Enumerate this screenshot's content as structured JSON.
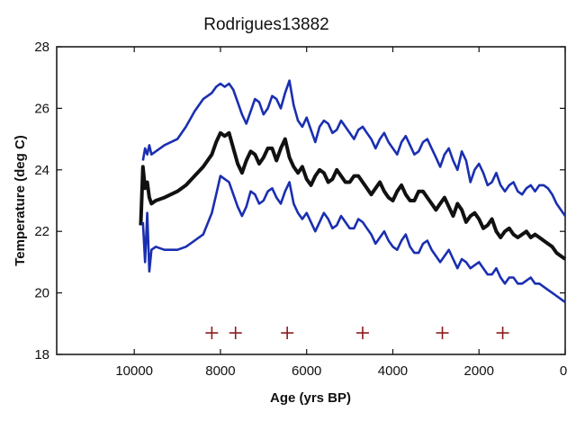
{
  "chart_data": {
    "type": "line",
    "title": "Rodrigues13882",
    "xlabel": "Age (yrs BP)",
    "ylabel": "Temperature (deg C)",
    "xlim": [
      11800,
      0
    ],
    "ylim": [
      18,
      28
    ],
    "x_reversed": true,
    "xticks": [
      10000,
      8000,
      6000,
      4000,
      2000,
      0
    ],
    "yticks": [
      18,
      20,
      22,
      24,
      26,
      28
    ],
    "grid": false,
    "legend": "none",
    "series": [
      {
        "color": "#1a2fb0",
        "x": [
          9800,
          9750,
          9700,
          9650,
          9600,
          9500,
          9300,
          9000,
          8800,
          8600,
          8400,
          8200,
          8100,
          8000,
          7900,
          7800,
          7700,
          7600,
          7500,
          7400,
          7300,
          7200,
          7100,
          7000,
          6900,
          6800,
          6700,
          6600,
          6500,
          6400,
          6300,
          6200,
          6100,
          6000,
          5900,
          5800,
          5700,
          5600,
          5500,
          5400,
          5300,
          5200,
          5100,
          5000,
          4900,
          4800,
          4700,
          4600,
          4500,
          4400,
          4300,
          4200,
          4100,
          4000,
          3900,
          3800,
          3700,
          3600,
          3500,
          3400,
          3300,
          3200,
          3100,
          3000,
          2900,
          2800,
          2700,
          2600,
          2500,
          2400,
          2300,
          2200,
          2100,
          2000,
          1900,
          1800,
          1700,
          1600,
          1500,
          1400,
          1300,
          1200,
          1100,
          1000,
          900,
          800,
          700,
          600,
          500,
          400,
          300,
          200,
          100,
          0
        ],
        "y": [
          24.3,
          24.7,
          24.5,
          24.8,
          24.5,
          24.6,
          24.8,
          25.0,
          25.4,
          25.9,
          26.3,
          26.5,
          26.7,
          26.8,
          26.7,
          26.8,
          26.6,
          26.2,
          25.8,
          25.5,
          25.9,
          26.3,
          26.2,
          25.8,
          26.0,
          26.4,
          26.3,
          26.0,
          26.5,
          26.9,
          26.1,
          25.6,
          25.4,
          25.7,
          25.3,
          24.9,
          25.4,
          25.6,
          25.5,
          25.2,
          25.3,
          25.6,
          25.4,
          25.2,
          25.0,
          25.3,
          25.4,
          25.2,
          25.0,
          24.7,
          25.0,
          25.2,
          24.9,
          24.7,
          24.5,
          24.9,
          25.1,
          24.8,
          24.5,
          24.6,
          24.9,
          25.0,
          24.7,
          24.4,
          24.1,
          24.5,
          24.7,
          24.3,
          24.0,
          24.6,
          24.3,
          23.6,
          24.0,
          24.2,
          23.9,
          23.5,
          23.6,
          23.9,
          23.5,
          23.3,
          23.5,
          23.6,
          23.3,
          23.2,
          23.4,
          23.5,
          23.3,
          23.5,
          23.5,
          23.4,
          23.2,
          22.9,
          22.7,
          22.5
        ]
      },
      {
        "color": "#111111",
        "x": [
          9850,
          9800,
          9750,
          9700,
          9650,
          9600,
          9500,
          9300,
          9000,
          8800,
          8600,
          8400,
          8200,
          8100,
          8000,
          7900,
          7800,
          7700,
          7600,
          7500,
          7400,
          7300,
          7200,
          7100,
          7000,
          6900,
          6800,
          6700,
          6600,
          6500,
          6400,
          6300,
          6200,
          6100,
          6000,
          5900,
          5800,
          5700,
          5600,
          5500,
          5400,
          5300,
          5200,
          5100,
          5000,
          4900,
          4800,
          4700,
          4600,
          4500,
          4400,
          4300,
          4200,
          4100,
          4000,
          3900,
          3800,
          3700,
          3600,
          3500,
          3400,
          3300,
          3200,
          3100,
          3000,
          2900,
          2800,
          2700,
          2600,
          2500,
          2400,
          2300,
          2200,
          2100,
          2000,
          1900,
          1800,
          1700,
          1600,
          1500,
          1400,
          1300,
          1200,
          1100,
          1000,
          900,
          800,
          700,
          600,
          500,
          400,
          300,
          200,
          100,
          0
        ],
        "y": [
          22.2,
          24.1,
          23.4,
          23.6,
          23.1,
          22.9,
          23.0,
          23.1,
          23.3,
          23.5,
          23.8,
          24.1,
          24.5,
          24.9,
          25.2,
          25.1,
          25.2,
          24.7,
          24.2,
          23.9,
          24.3,
          24.6,
          24.5,
          24.2,
          24.4,
          24.7,
          24.7,
          24.3,
          24.7,
          25.0,
          24.4,
          24.1,
          23.9,
          24.1,
          23.7,
          23.5,
          23.8,
          24.0,
          23.9,
          23.6,
          23.7,
          24.0,
          23.8,
          23.6,
          23.6,
          23.8,
          23.8,
          23.6,
          23.4,
          23.2,
          23.4,
          23.6,
          23.3,
          23.1,
          23.0,
          23.3,
          23.5,
          23.2,
          23.0,
          23.0,
          23.3,
          23.3,
          23.1,
          22.9,
          22.7,
          22.9,
          23.1,
          22.8,
          22.5,
          22.9,
          22.7,
          22.3,
          22.5,
          22.6,
          22.4,
          22.1,
          22.2,
          22.4,
          22.0,
          21.8,
          22.0,
          22.1,
          21.9,
          21.8,
          21.9,
          22.0,
          21.8,
          21.9,
          21.8,
          21.7,
          21.6,
          21.5,
          21.3,
          21.2,
          21.1
        ]
      },
      {
        "color": "#1a2fb0",
        "x": [
          9800,
          9750,
          9700,
          9650,
          9600,
          9500,
          9300,
          9000,
          8800,
          8600,
          8400,
          8200,
          8100,
          8000,
          7900,
          7800,
          7700,
          7600,
          7500,
          7400,
          7300,
          7200,
          7100,
          7000,
          6900,
          6800,
          6700,
          6600,
          6500,
          6400,
          6300,
          6200,
          6100,
          6000,
          5900,
          5800,
          5700,
          5600,
          5500,
          5400,
          5300,
          5200,
          5100,
          5000,
          4900,
          4800,
          4700,
          4600,
          4500,
          4400,
          4300,
          4200,
          4100,
          4000,
          3900,
          3800,
          3700,
          3600,
          3500,
          3400,
          3300,
          3200,
          3100,
          3000,
          2900,
          2800,
          2700,
          2600,
          2500,
          2400,
          2300,
          2200,
          2100,
          2000,
          1900,
          1800,
          1700,
          1600,
          1500,
          1400,
          1300,
          1200,
          1100,
          1000,
          900,
          800,
          700,
          600,
          500,
          400,
          300,
          200,
          100,
          0
        ],
        "y": [
          22.3,
          21.0,
          22.6,
          20.7,
          21.4,
          21.5,
          21.4,
          21.4,
          21.5,
          21.7,
          21.9,
          22.6,
          23.2,
          23.8,
          23.7,
          23.6,
          23.2,
          22.8,
          22.5,
          22.8,
          23.3,
          23.2,
          22.9,
          23.0,
          23.3,
          23.4,
          23.1,
          22.9,
          23.3,
          23.6,
          22.9,
          22.6,
          22.4,
          22.6,
          22.3,
          22.0,
          22.3,
          22.6,
          22.4,
          22.1,
          22.2,
          22.5,
          22.3,
          22.1,
          22.1,
          22.4,
          22.3,
          22.1,
          21.9,
          21.6,
          21.8,
          22.0,
          21.7,
          21.5,
          21.4,
          21.7,
          21.9,
          21.5,
          21.3,
          21.3,
          21.6,
          21.7,
          21.4,
          21.2,
          21.0,
          21.2,
          21.4,
          21.1,
          20.8,
          21.1,
          21.0,
          20.8,
          20.9,
          21.0,
          20.8,
          20.6,
          20.6,
          20.8,
          20.5,
          20.3,
          20.5,
          20.5,
          20.3,
          20.3,
          20.4,
          20.5,
          20.3,
          20.3,
          20.2,
          20.1,
          20.0,
          19.9,
          19.8,
          19.7
        ]
      }
    ],
    "markers": {
      "symbol": "+",
      "color": "#8b1a1a",
      "x": [
        8200,
        7650,
        6450,
        4700,
        2850,
        1450
      ],
      "y": [
        18.7,
        18.7,
        18.7,
        18.7,
        18.7,
        18.7
      ]
    }
  }
}
